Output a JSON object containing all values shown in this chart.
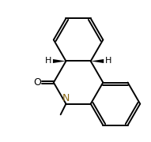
{
  "bg_color": "#ffffff",
  "line_color": "#000000",
  "bond_lw": 1.4,
  "nitrogen_color": "#8B6914",
  "font_size_N": 9,
  "font_size_H": 8,
  "font_size_O": 9,
  "label_N": "N",
  "label_O": "O",
  "label_H": "H"
}
